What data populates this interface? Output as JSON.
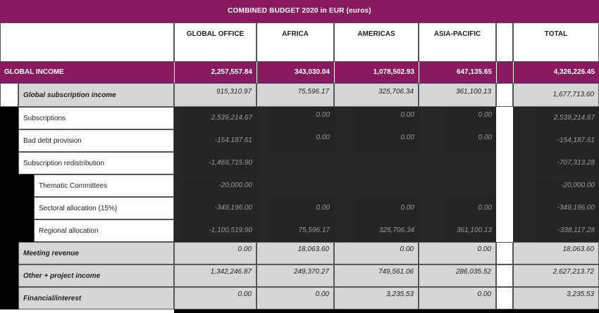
{
  "title": "COMBINED BUDGET 2020 in EUR (euros)",
  "columns": [
    "GLOBAL OFFICE",
    "AFRICA",
    "AMERICAS",
    "ASIA-PACIFIC",
    "TOTAL"
  ],
  "global_income": {
    "label": "GLOBAL INCOME",
    "values": [
      "2,257,557.84",
      "343,030.04",
      "1,078,502.93",
      "647,135.65",
      "4,326,226.45"
    ]
  },
  "global_subscription": {
    "label": "Global subscription income",
    "values": [
      "915,310.97",
      "75,596.17",
      "325,706.34",
      "361,100.13",
      "1,677,713.60"
    ]
  },
  "sub_rows": [
    {
      "label": "Subscriptions",
      "values": [
        "2,539,214.67",
        "0.00",
        "0.00",
        "0.00",
        "2,539,214.67"
      ]
    },
    {
      "label": "Bad debt provision",
      "values": [
        "-154,187.61",
        "0.00",
        "0.00",
        "0.00",
        "-154,187.61"
      ]
    },
    {
      "label": "Subscription redistribution",
      "values": [
        "-1,469,715.90",
        "",
        "",
        "",
        "-707,313.28"
      ]
    },
    {
      "label": "Thematic Committees",
      "values": [
        "-20,000.00",
        "",
        "",
        "",
        "-20,000.00"
      ]
    },
    {
      "label": "Sectoral allocation (15%)",
      "values": [
        "-349,196.00",
        "0.00",
        "0.00",
        "0.00",
        "-349,196.00"
      ]
    },
    {
      "label": "Regional allocation",
      "values": [
        "-1,100,519.90",
        "75,596.17",
        "325,706.34",
        "361,100.13",
        "-338,117.28"
      ]
    }
  ],
  "grey_rows": [
    {
      "label": "Meeting revenue",
      "values": [
        "0.00",
        "18,063.60",
        "0.00",
        "0.00",
        "18,063.60"
      ]
    },
    {
      "label": "Other + project income",
      "values": [
        "1,342,246.87",
        "249,370.27",
        "749,561.06",
        "286,035.52",
        "2,627,213.72"
      ]
    },
    {
      "label": "Financial/interest",
      "values": [
        "0.00",
        "0.00",
        "3,235.53",
        "0.00",
        "3,235.53"
      ]
    }
  ]
}
